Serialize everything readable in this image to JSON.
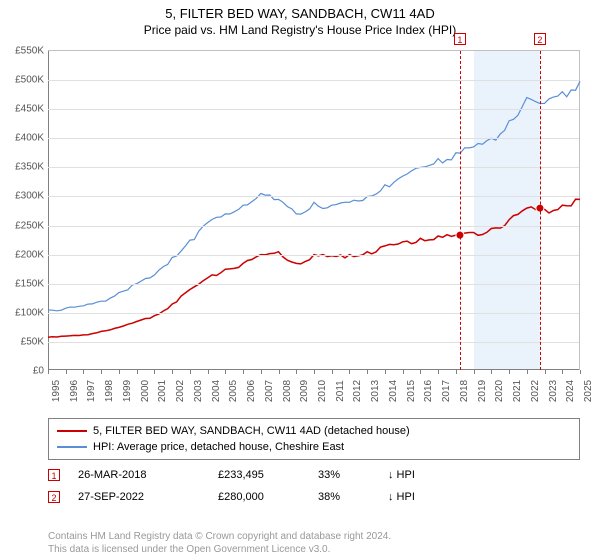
{
  "title": "5, FILTER BED WAY, SANDBACH, CW11 4AD",
  "subtitle": "Price paid vs. HM Land Registry's House Price Index (HPI)",
  "chart": {
    "type": "line",
    "x_start_year": 1995,
    "x_end_year": 2025,
    "y_min": 0,
    "y_max": 550000,
    "y_step": 50000,
    "y_unit_prefix": "£",
    "y_k_suffix": "K",
    "background_color": "#ffffff",
    "grid_color": "#e0e0e0",
    "axis_color": "#808080",
    "highlight_band": {
      "x_start": 2019.0,
      "x_end": 2022.8,
      "color": "#eaf2fb"
    },
    "series": [
      {
        "label": "5, FILTER BED WAY, SANDBACH, CW11 4AD (detached house)",
        "color": "#cc0000",
        "width": 1.5,
        "data": [
          [
            1995,
            58000
          ],
          [
            1996,
            60000
          ],
          [
            1997,
            62000
          ],
          [
            1998,
            68000
          ],
          [
            1999,
            75000
          ],
          [
            2000,
            85000
          ],
          [
            2001,
            95000
          ],
          [
            2002,
            115000
          ],
          [
            2003,
            140000
          ],
          [
            2004,
            160000
          ],
          [
            2005,
            175000
          ],
          [
            2006,
            185000
          ],
          [
            2007,
            200000
          ],
          [
            2008,
            205000
          ],
          [
            2009,
            185000
          ],
          [
            2010,
            200000
          ],
          [
            2011,
            198000
          ],
          [
            2012,
            200000
          ],
          [
            2013,
            205000
          ],
          [
            2014,
            215000
          ],
          [
            2015,
            222000
          ],
          [
            2016,
            228000
          ],
          [
            2017,
            232000
          ],
          [
            2018,
            233495
          ],
          [
            2019,
            238000
          ],
          [
            2020,
            245000
          ],
          [
            2021,
            260000
          ],
          [
            2022,
            280000
          ],
          [
            2023,
            278000
          ],
          [
            2024,
            285000
          ],
          [
            2025,
            295000
          ]
        ]
      },
      {
        "label": "HPI: Average price, detached house, Cheshire East",
        "color": "#5a8fd6",
        "width": 1.2,
        "data": [
          [
            1995,
            105000
          ],
          [
            1996,
            108000
          ],
          [
            1997,
            112000
          ],
          [
            1998,
            120000
          ],
          [
            1999,
            135000
          ],
          [
            2000,
            150000
          ],
          [
            2001,
            165000
          ],
          [
            2002,
            195000
          ],
          [
            2003,
            225000
          ],
          [
            2004,
            255000
          ],
          [
            2005,
            270000
          ],
          [
            2006,
            285000
          ],
          [
            2007,
            305000
          ],
          [
            2008,
            295000
          ],
          [
            2009,
            270000
          ],
          [
            2010,
            290000
          ],
          [
            2011,
            285000
          ],
          [
            2012,
            290000
          ],
          [
            2013,
            300000
          ],
          [
            2014,
            320000
          ],
          [
            2015,
            335000
          ],
          [
            2016,
            350000
          ],
          [
            2017,
            365000
          ],
          [
            2018,
            375000
          ],
          [
            2019,
            385000
          ],
          [
            2020,
            400000
          ],
          [
            2021,
            430000
          ],
          [
            2022,
            470000
          ],
          [
            2023,
            460000
          ],
          [
            2024,
            480000
          ],
          [
            2025,
            498000
          ]
        ]
      }
    ],
    "markers": [
      {
        "n": "1",
        "x": 2018.23,
        "date": "26-MAR-2018",
        "price": 233495,
        "pct": "33%",
        "arrow": "↓",
        "vs": "HPI"
      },
      {
        "n": "2",
        "x": 2022.74,
        "date": "27-SEP-2022",
        "price": 280000,
        "pct": "38%",
        "arrow": "↓",
        "vs": "HPI"
      }
    ]
  },
  "footer": {
    "line1": "Contains HM Land Registry data © Crown copyright and database right 2024.",
    "line2": "This data is licensed under the Open Government Licence v3.0."
  }
}
